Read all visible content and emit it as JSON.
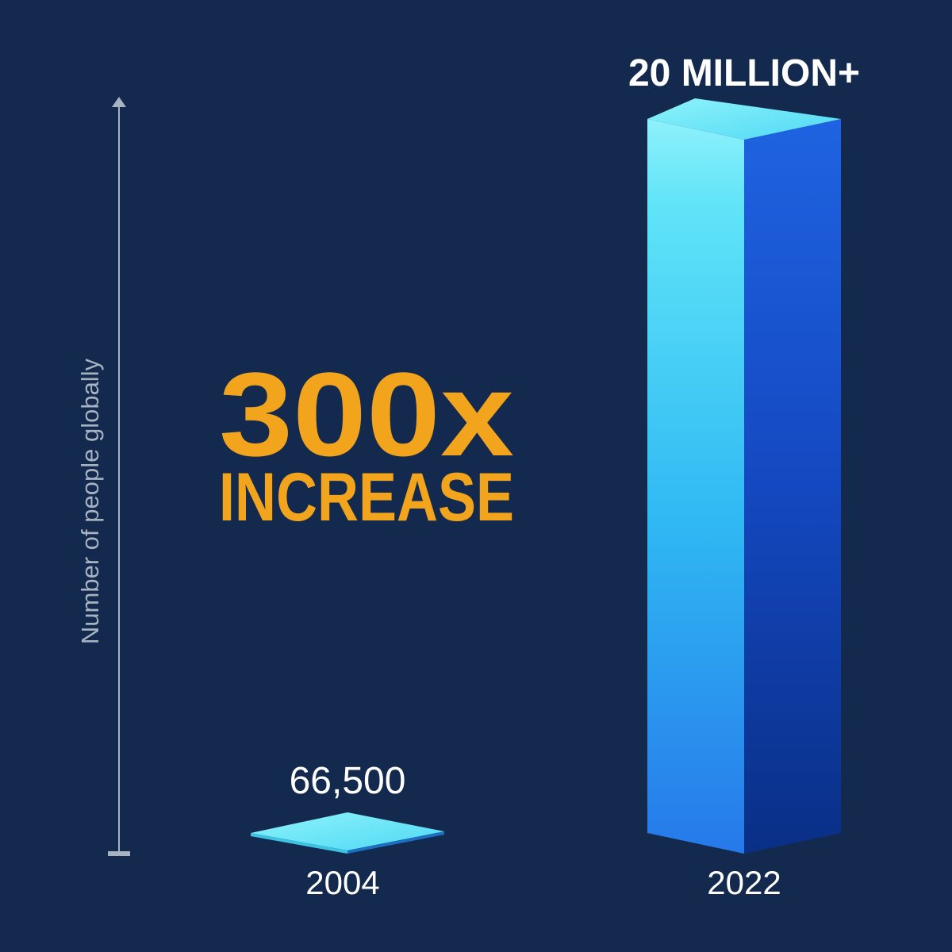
{
  "colors": {
    "background": "#132a4e",
    "accent": "#f2a41d",
    "bar_light": "#5ee6f7",
    "bar_dark": "#1a55d6",
    "axis": "#a8b3c2",
    "text": "#ffffff"
  },
  "chart_data": {
    "type": "bar",
    "style": "3d-column",
    "title": "",
    "xlabel": "",
    "ylabel": "Number of people globally",
    "categories": [
      "2004",
      "2022"
    ],
    "values": [
      66500,
      20000000
    ],
    "value_labels": [
      "66,500",
      "20 MILLION+"
    ],
    "ylim": [
      0,
      20000000
    ],
    "grid": false,
    "legend": "none",
    "annotation": {
      "big": "300x",
      "small": "INCREASE"
    }
  }
}
